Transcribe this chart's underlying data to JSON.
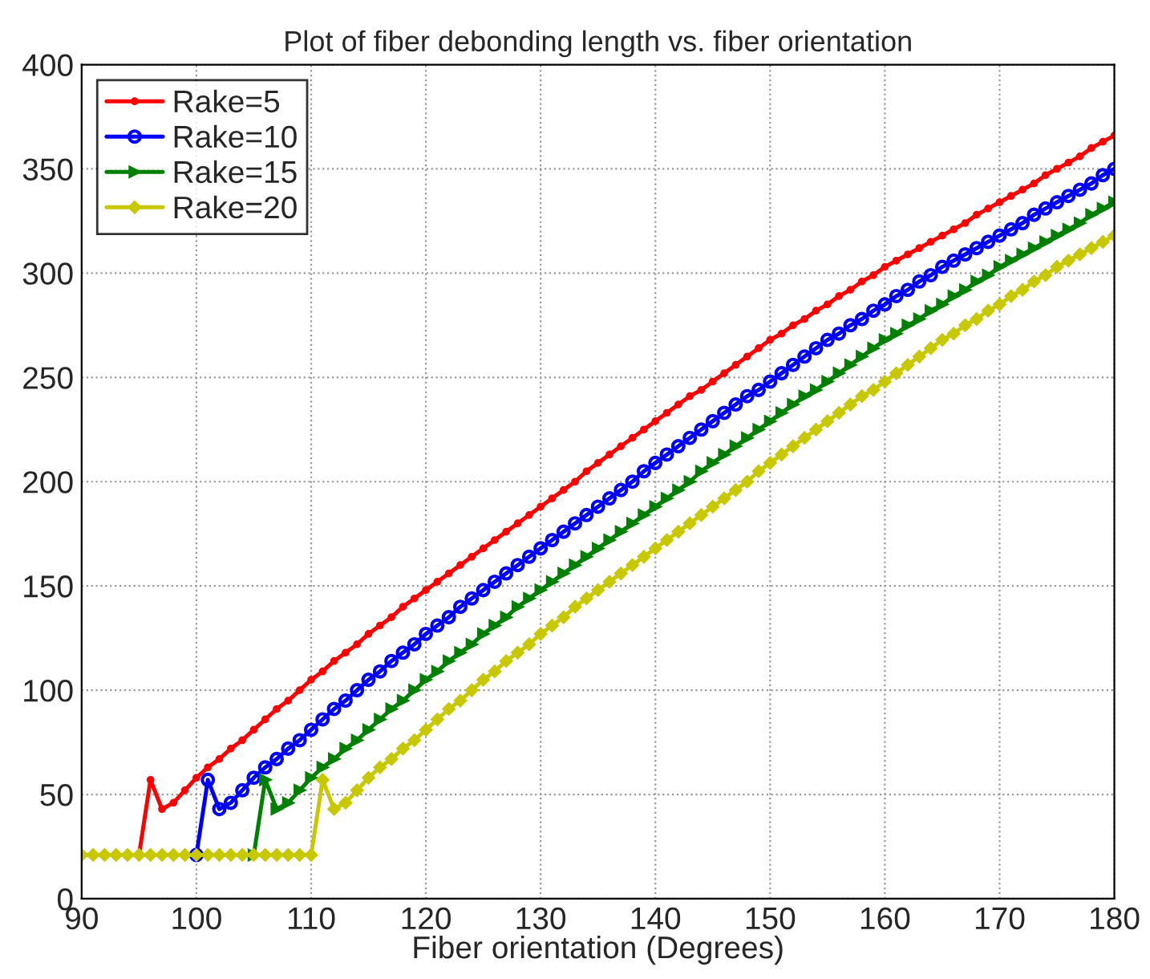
{
  "chart_data": {
    "type": "line",
    "title": "Plot of fiber debonding length vs. fiber orientation",
    "xlabel": "Fiber orientation (Degrees)",
    "x": [
      90,
      91,
      92,
      93,
      94,
      95,
      96,
      97,
      98,
      99,
      100,
      101,
      102,
      103,
      104,
      105,
      106,
      107,
      108,
      109,
      110,
      111,
      112,
      113,
      114,
      115,
      116,
      117,
      118,
      119,
      120,
      121,
      122,
      123,
      124,
      125,
      126,
      127,
      128,
      129,
      130,
      131,
      132,
      133,
      134,
      135,
      136,
      137,
      138,
      139,
      140,
      141,
      142,
      143,
      144,
      145,
      146,
      147,
      148,
      149,
      150,
      151,
      152,
      153,
      154,
      155,
      156,
      157,
      158,
      159,
      160,
      161,
      162,
      163,
      164,
      165,
      166,
      167,
      168,
      169,
      170,
      171,
      172,
      173,
      174,
      175,
      176,
      177,
      178,
      179,
      180
    ],
    "series": [
      {
        "name": "Rake=5",
        "color": "#ff0000",
        "marker": "point",
        "values": [
          null,
          null,
          null,
          null,
          null,
          21,
          57,
          43,
          46,
          52,
          58,
          63,
          67,
          72,
          76,
          81,
          86,
          91,
          95,
          100,
          105,
          109,
          114,
          118,
          122,
          127,
          131,
          135,
          140,
          144,
          148,
          152,
          156,
          160,
          164,
          168,
          172,
          176,
          180,
          184,
          188,
          192,
          196,
          200,
          205,
          209,
          213,
          217,
          221,
          225,
          229,
          233,
          237,
          241,
          244,
          248,
          252,
          256,
          260,
          264,
          268,
          271,
          275,
          278,
          282,
          285,
          289,
          292,
          296,
          299,
          303,
          306,
          309,
          312,
          315,
          318,
          321,
          324,
          328,
          331,
          334,
          337,
          340,
          343,
          347,
          350,
          353,
          356,
          360,
          363,
          366
        ]
      },
      {
        "name": "Rake=10",
        "color": "#0000ff",
        "marker": "circle",
        "values": [
          null,
          null,
          null,
          null,
          null,
          null,
          null,
          null,
          null,
          null,
          21,
          57,
          43,
          46,
          52,
          58,
          63,
          67,
          72,
          76,
          81,
          86,
          91,
          95,
          100,
          105,
          109,
          114,
          118,
          122,
          127,
          131,
          135,
          140,
          144,
          148,
          152,
          156,
          160,
          164,
          168,
          172,
          176,
          180,
          184,
          188,
          192,
          196,
          200,
          205,
          209,
          213,
          217,
          221,
          225,
          229,
          233,
          237,
          241,
          244,
          248,
          252,
          256,
          260,
          264,
          268,
          271,
          275,
          278,
          282,
          285,
          289,
          292,
          296,
          299,
          303,
          306,
          309,
          312,
          315,
          318,
          321,
          324,
          328,
          331,
          334,
          337,
          340,
          343,
          347,
          350
        ]
      },
      {
        "name": "Rake=15",
        "color": "#008000",
        "marker": "triangle",
        "values": [
          null,
          null,
          null,
          null,
          null,
          null,
          null,
          null,
          null,
          null,
          null,
          null,
          null,
          null,
          null,
          21,
          57,
          43,
          46,
          52,
          58,
          63,
          67,
          72,
          76,
          81,
          86,
          91,
          95,
          100,
          105,
          109,
          114,
          118,
          122,
          127,
          131,
          135,
          140,
          144,
          148,
          152,
          156,
          160,
          164,
          168,
          172,
          176,
          180,
          184,
          188,
          192,
          196,
          200,
          205,
          209,
          213,
          217,
          221,
          225,
          229,
          233,
          237,
          241,
          244,
          248,
          252,
          256,
          260,
          264,
          268,
          271,
          275,
          278,
          282,
          285,
          289,
          292,
          296,
          299,
          303,
          306,
          309,
          312,
          315,
          318,
          321,
          324,
          328,
          331,
          334
        ]
      },
      {
        "name": "Rake=20",
        "color": "#c8c800",
        "marker": "diamond",
        "values": [
          21,
          21,
          21,
          21,
          21,
          21,
          21,
          21,
          21,
          21,
          21,
          21,
          21,
          21,
          21,
          21,
          21,
          21,
          21,
          21,
          21,
          57,
          43,
          46,
          52,
          58,
          63,
          67,
          72,
          76,
          81,
          86,
          91,
          95,
          100,
          105,
          109,
          114,
          118,
          122,
          127,
          131,
          135,
          140,
          144,
          148,
          152,
          156,
          160,
          164,
          168,
          172,
          176,
          180,
          184,
          188,
          192,
          196,
          200,
          205,
          209,
          213,
          217,
          221,
          225,
          229,
          233,
          237,
          241,
          244,
          248,
          252,
          256,
          260,
          264,
          268,
          271,
          275,
          278,
          282,
          285,
          289,
          292,
          296,
          299,
          303,
          306,
          309,
          312,
          315,
          318
        ]
      }
    ],
    "xlim": [
      90,
      180
    ],
    "xticks": [
      90,
      100,
      110,
      120,
      130,
      140,
      150,
      160,
      170,
      180
    ],
    "ylim": [
      0,
      400
    ],
    "yticks": [
      0,
      50,
      100,
      150,
      200,
      250,
      300,
      350,
      400
    ],
    "grid": true,
    "legend": "top left",
    "line_style": "solid"
  }
}
